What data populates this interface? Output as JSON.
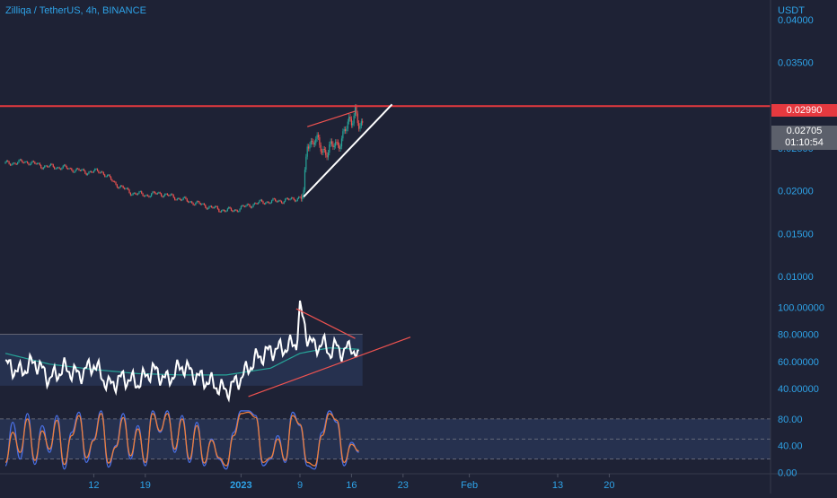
{
  "symbol_title": "Zilliqa / TetherUS, 4h, BINANCE",
  "currency": "USDT",
  "colors": {
    "background": "#1e2235",
    "axis_text": "#2ea3e8",
    "level_line": "#e5393f",
    "candle_up": "#26a69a",
    "candle_down": "#ef5350",
    "rsi_line": "#ffffff",
    "rsi_ma": "#26a69a",
    "rsi_band": "#283453",
    "stoch_k": "#4a6fe3",
    "stoch_d": "#f07f3c",
    "stoch_band": "#283453",
    "trendline_white": "#ffffff",
    "trendline_red": "#ef5350",
    "last_price_bg": "#5c606b"
  },
  "price_axis": {
    "ticks": [
      "0.04000",
      "0.03500",
      "0.02500",
      "0.02000",
      "0.01500",
      "0.01000"
    ],
    "range": [
      0.0077,
      0.0423
    ]
  },
  "level": {
    "label": "0.02990",
    "value": 0.0299
  },
  "last_price": {
    "label": "0.02705",
    "countdown": "01:10:54",
    "value": 0.02705
  },
  "rsi_axis": {
    "ticks": [
      "100.00000",
      "80.00000",
      "60.00000",
      "40.00000"
    ],
    "range": [
      30,
      103
    ]
  },
  "stoch_axis": {
    "ticks": [
      "80.00",
      "40.00",
      "0.00"
    ],
    "range": [
      -2,
      100
    ]
  },
  "time_axis": {
    "labels": [
      {
        "text": "12",
        "day": 12,
        "bold": false
      },
      {
        "text": "19",
        "day": 19,
        "bold": false
      },
      {
        "text": "2023",
        "day": 32,
        "bold": true
      },
      {
        "text": "9",
        "day": 40,
        "bold": false
      },
      {
        "text": "16",
        "day": 47,
        "bold": false
      },
      {
        "text": "23",
        "day": 54,
        "bold": false
      },
      {
        "text": "Feb",
        "day": 63,
        "bold": false
      },
      {
        "text": "13",
        "day": 75,
        "bold": false
      },
      {
        "text": "20",
        "day": 82,
        "bold": false
      }
    ]
  },
  "chart_data": {
    "type": "line",
    "title": "Zilliqa / TetherUS, 4h, BINANCE",
    "x_unit": "day (Dec 1 = 1, Jan 1 = 32)",
    "price_series": {
      "x": [
        0,
        3,
        5,
        8,
        11,
        13,
        15,
        17,
        19,
        21,
        24,
        27,
        29,
        31,
        33,
        35,
        37,
        39,
        40.5,
        41,
        42,
        43,
        44,
        45,
        46,
        47,
        47.5,
        48,
        48.5
      ],
      "y": [
        0.0232,
        0.0234,
        0.0229,
        0.0227,
        0.0222,
        0.0223,
        0.0208,
        0.0198,
        0.0195,
        0.0197,
        0.019,
        0.0183,
        0.0178,
        0.0177,
        0.0183,
        0.0187,
        0.0188,
        0.019,
        0.0194,
        0.0255,
        0.0262,
        0.0245,
        0.0252,
        0.025,
        0.0272,
        0.0278,
        0.0298,
        0.028,
        0.02705
      ]
    },
    "level_line": 0.0299,
    "trendlines_price": [
      {
        "x": [
          40.5,
          52.5
        ],
        "y": [
          0.0193,
          0.0301
        ],
        "color": "white"
      },
      {
        "x": [
          41,
          47.5
        ],
        "y": [
          0.0275,
          0.0293
        ],
        "color": "red"
      }
    ],
    "rsi": {
      "x": [
        0,
        2,
        4,
        6,
        8,
        10,
        12,
        14,
        16,
        18,
        20,
        22,
        24,
        26,
        28,
        30,
        32,
        34,
        36,
        38,
        39.5,
        40,
        41,
        42,
        43,
        44,
        45,
        46,
        47,
        47.5,
        48
      ],
      "y": [
        58,
        52,
        60,
        47,
        55,
        50,
        58,
        42,
        48,
        44,
        54,
        46,
        57,
        49,
        44,
        38,
        48,
        62,
        68,
        70,
        74,
        99,
        79,
        70,
        74,
        67,
        71,
        66,
        73,
        65,
        61
      ]
    },
    "rsi_ma": {
      "x": [
        0,
        6,
        12,
        18,
        24,
        30,
        36,
        40,
        44,
        48
      ],
      "y": [
        66,
        58,
        54,
        51,
        50,
        50,
        55,
        66,
        70,
        69
      ]
    },
    "rsi_band": [
      42,
      80
    ],
    "rsi_trendlines": [
      {
        "x": [
          39.5,
          47.5
        ],
        "y": [
          99,
          77
        ],
        "color": "red"
      },
      {
        "x": [
          33,
          55
        ],
        "y": [
          34,
          78
        ],
        "color": "red"
      }
    ],
    "stoch_k": {
      "x": [
        0,
        1,
        2,
        3,
        4,
        5,
        6,
        7,
        8,
        9,
        10,
        11,
        12,
        13,
        14,
        15,
        16,
        17,
        18,
        19,
        20,
        21,
        22,
        23,
        24,
        25,
        26,
        27,
        28,
        29,
        30,
        31,
        32,
        33,
        34,
        35,
        36,
        37,
        38,
        39,
        40,
        41,
        42,
        43,
        44,
        45,
        46,
        47,
        48
      ],
      "y": [
        10,
        75,
        20,
        88,
        12,
        70,
        30,
        85,
        5,
        60,
        90,
        15,
        50,
        92,
        8,
        40,
        88,
        20,
        70,
        10,
        92,
        60,
        92,
        30,
        85,
        15,
        75,
        10,
        50,
        20,
        5,
        60,
        92,
        92,
        85,
        10,
        20,
        55,
        15,
        90,
        70,
        10,
        5,
        60,
        92,
        75,
        10,
        45,
        30
      ]
    },
    "stoch_d": {
      "x": [
        0,
        1,
        2,
        3,
        4,
        5,
        6,
        7,
        8,
        9,
        10,
        11,
        12,
        13,
        14,
        15,
        16,
        17,
        18,
        19,
        20,
        21,
        22,
        23,
        24,
        25,
        26,
        27,
        28,
        29,
        30,
        31,
        32,
        33,
        34,
        35,
        36,
        37,
        38,
        39,
        40,
        41,
        42,
        43,
        44,
        45,
        46,
        47,
        48
      ],
      "y": [
        15,
        60,
        30,
        80,
        18,
        62,
        35,
        78,
        12,
        55,
        85,
        22,
        48,
        88,
        14,
        38,
        82,
        25,
        65,
        15,
        88,
        62,
        88,
        35,
        80,
        20,
        70,
        14,
        48,
        22,
        10,
        55,
        88,
        90,
        82,
        15,
        22,
        50,
        18,
        85,
        72,
        15,
        10,
        55,
        88,
        78,
        15,
        42,
        32
      ]
    },
    "stoch_levels": [
      80,
      50,
      20
    ]
  }
}
